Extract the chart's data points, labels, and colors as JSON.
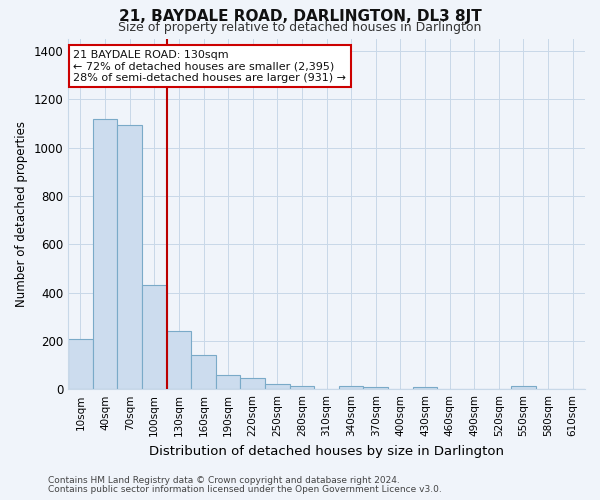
{
  "title": "21, BAYDALE ROAD, DARLINGTON, DL3 8JT",
  "subtitle": "Size of property relative to detached houses in Darlington",
  "xlabel": "Distribution of detached houses by size in Darlington",
  "ylabel": "Number of detached properties",
  "footnote1": "Contains HM Land Registry data © Crown copyright and database right 2024.",
  "footnote2": "Contains public sector information licensed under the Open Government Licence v3.0.",
  "bar_labels": [
    "10sqm",
    "40sqm",
    "70sqm",
    "100sqm",
    "130sqm",
    "160sqm",
    "190sqm",
    "220sqm",
    "250sqm",
    "280sqm",
    "310sqm",
    "340sqm",
    "370sqm",
    "400sqm",
    "430sqm",
    "460sqm",
    "490sqm",
    "520sqm",
    "550sqm",
    "580sqm",
    "610sqm"
  ],
  "bar_values": [
    210,
    1120,
    1095,
    430,
    240,
    140,
    60,
    47,
    22,
    15,
    0,
    12,
    10,
    0,
    10,
    0,
    0,
    0,
    12,
    0,
    0
  ],
  "bar_color": "#ccdcee",
  "bar_edge_color": "#7aaac8",
  "vline_x": 3.5,
  "vline_color": "#bb0000",
  "ylim": [
    0,
    1450
  ],
  "yticks": [
    0,
    200,
    400,
    600,
    800,
    1000,
    1200,
    1400
  ],
  "annotation_title": "21 BAYDALE ROAD: 130sqm",
  "annotation_line1": "← 72% of detached houses are smaller (2,395)",
  "annotation_line2": "28% of semi-detached houses are larger (931) →",
  "annotation_box_color": "#ffffff",
  "annotation_box_edge": "#cc0000",
  "background_color": "#f0f4fa",
  "grid_color": "#c8d8e8",
  "title_color": "#111111",
  "subtitle_color": "#333333",
  "footnote_color": "#444444"
}
